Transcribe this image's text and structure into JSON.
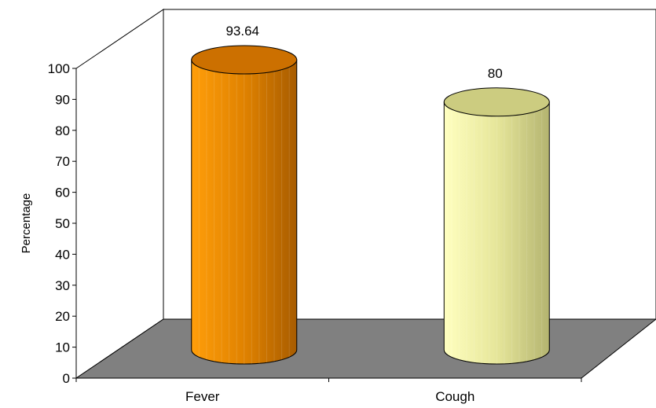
{
  "chart_data": {
    "type": "bar",
    "style": "3d-cylinder",
    "categories": [
      "Fever",
      "Cough"
    ],
    "values": [
      93.64,
      80
    ],
    "data_labels": [
      "93.64",
      "80"
    ],
    "ylabel": "Percentage",
    "xlabel": "",
    "title": "",
    "ylim": [
      0,
      100
    ],
    "yticks": [
      0,
      10,
      20,
      30,
      40,
      50,
      60,
      70,
      80,
      90,
      100
    ],
    "grid": false,
    "legend": "none",
    "colors": {
      "bars": [
        "#f08c00",
        "#f0f0a0"
      ],
      "floor": "#808080",
      "walls": "#ffffff"
    }
  }
}
